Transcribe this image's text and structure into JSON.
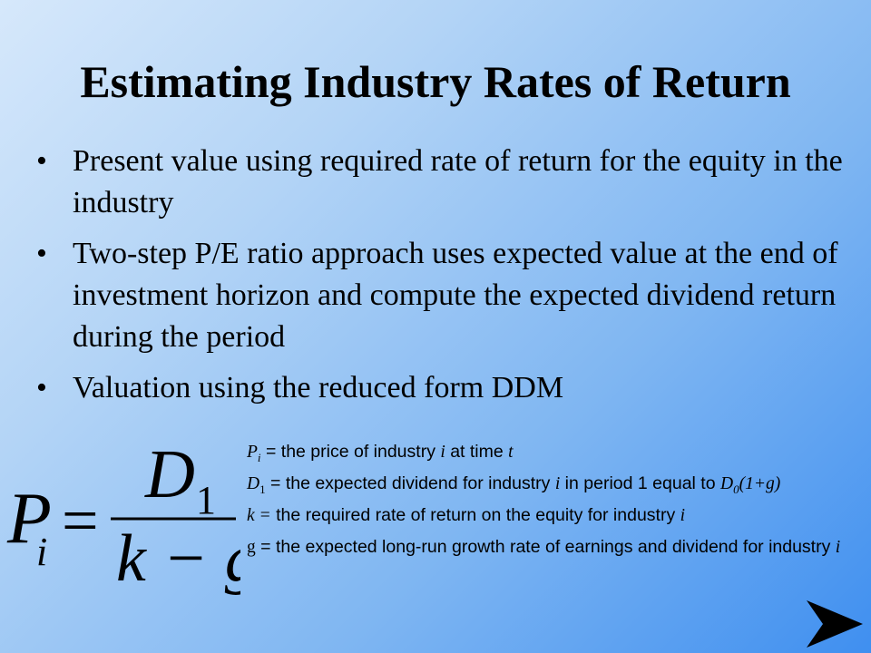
{
  "slide": {
    "title": "Estimating Industry Rates of Return",
    "bullets": [
      "Present value using required rate of return for the equity in the industry",
      "Two-step P/E ratio approach uses expected value at the end of investment horizon and compute the expected dividend return during the period",
      "Valuation using the reduced form DDM"
    ],
    "bullet_char": "•"
  },
  "formula": {
    "lhs": "P",
    "lhs_sub": "i",
    "eq": "=",
    "numerator": "D",
    "numerator_sub": "1",
    "denominator": "k − g"
  },
  "definitions": {
    "p_sym": "P",
    "p_sub": "i",
    "p_text_a": " = the price of industry ",
    "p_i": "i",
    "p_text_b": " at time ",
    "p_t": "t",
    "d_sym": "D",
    "d_sub": "1",
    "d_text_a": " = the expected dividend for industry ",
    "d_i": "i",
    "d_text_b": " in period 1 equal to ",
    "d0_sym": "D",
    "d0_sub": "0",
    "d0_expr": "(1+g)",
    "k_sym": "k =",
    "k_text": " the required rate of return on the equity for industry ",
    "k_i": "i",
    "g_sym": "g",
    "g_text": " = the expected long-run growth rate of earnings and dividend for industry ",
    "g_i": "i"
  },
  "navigation": {
    "next_icon": "arrowhead-right-icon",
    "arrow_color": "#000000"
  }
}
